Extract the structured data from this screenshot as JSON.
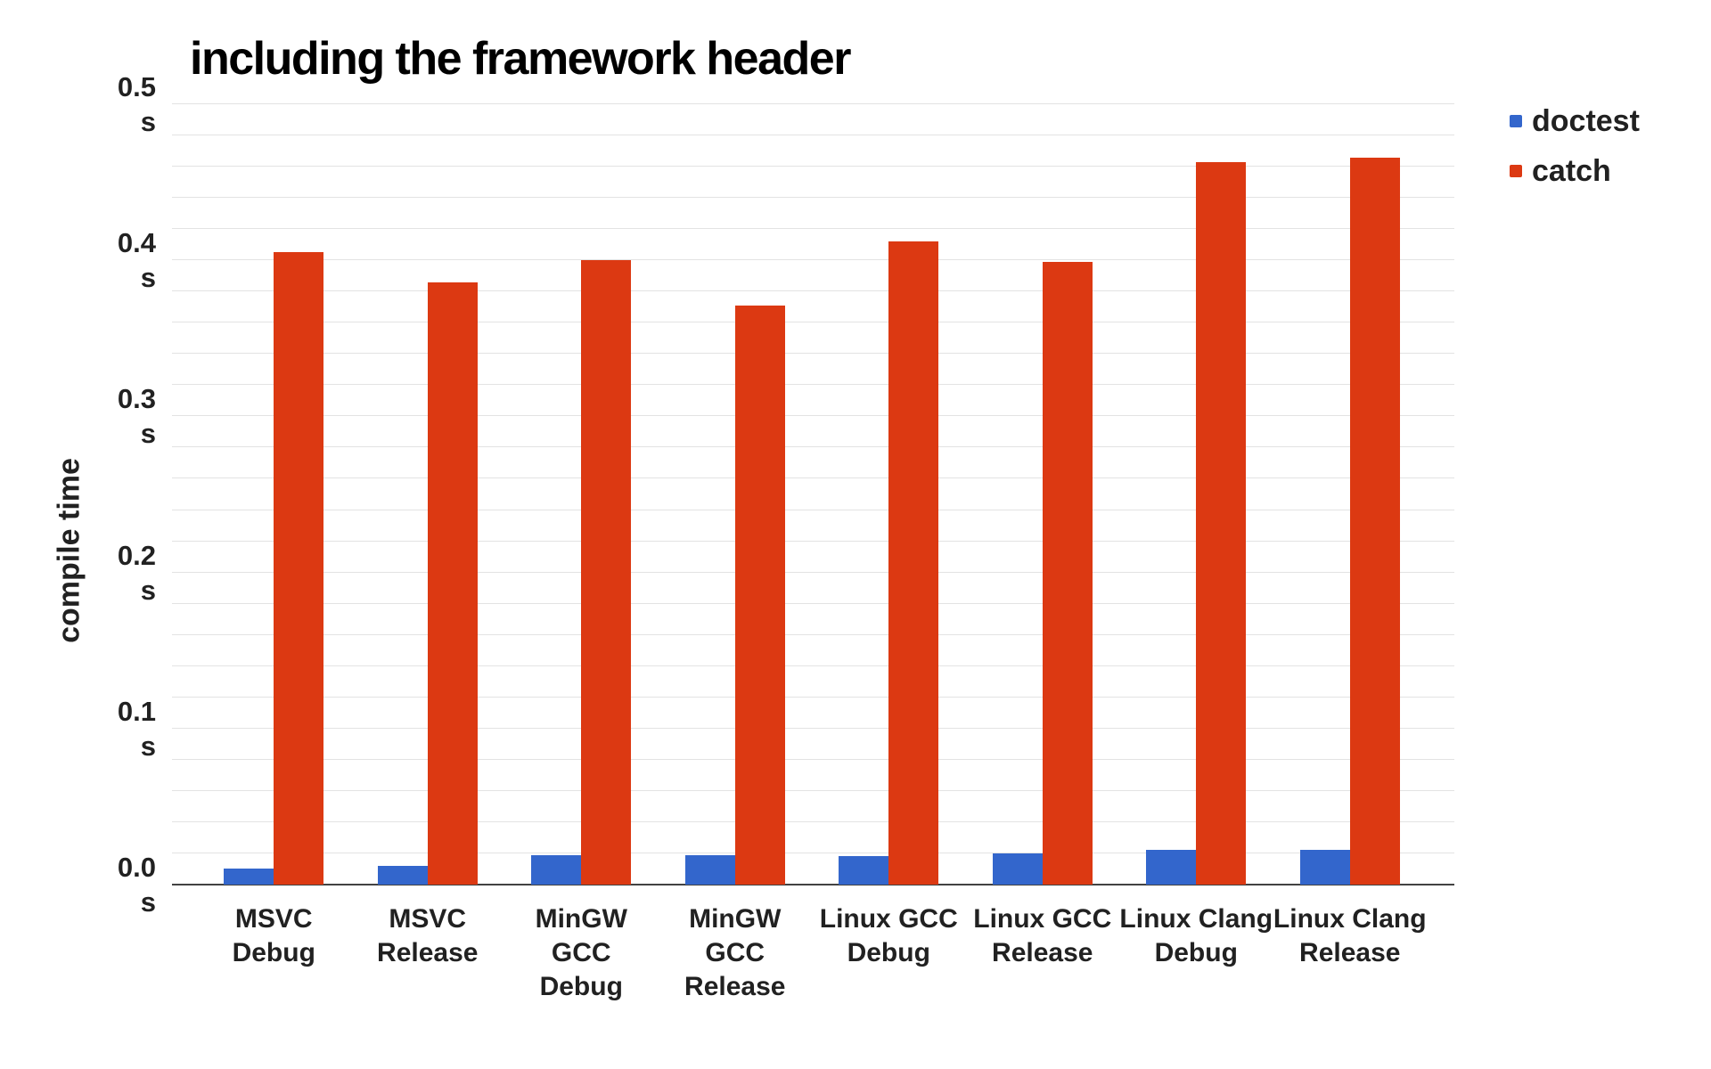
{
  "chart_data": {
    "type": "bar",
    "title": "including the framework header",
    "ylabel": "compile time",
    "xlabel": "",
    "tick_unit": "s",
    "ylim": [
      0,
      0.5
    ],
    "yticks": [
      0.0,
      0.1,
      0.2,
      0.3,
      0.4,
      0.5
    ],
    "minor_grid_step": 0.02,
    "grid": true,
    "legend_position": "top-right",
    "categories": [
      [
        "MSVC",
        "Debug"
      ],
      [
        "MSVC",
        "Release"
      ],
      [
        "MinGW GCC",
        "Debug"
      ],
      [
        "MinGW GCC",
        "Release"
      ],
      [
        "Linux GCC",
        "Debug"
      ],
      [
        "Linux GCC",
        "Release"
      ],
      [
        "Linux Clang",
        "Debug"
      ],
      [
        "Linux Clang",
        "Release"
      ]
    ],
    "series": [
      {
        "name": "doctest",
        "color": "#3366cc",
        "values": [
          0.01,
          0.012,
          0.019,
          0.019,
          0.018,
          0.02,
          0.022,
          0.022
        ]
      },
      {
        "name": "catch",
        "color": "#dc3912",
        "values": [
          0.405,
          0.386,
          0.4,
          0.371,
          0.412,
          0.399,
          0.463,
          0.466
        ]
      }
    ],
    "colors": {
      "grid": "#e3e3e3",
      "axis_baseline": "#424242",
      "title_text": "#000000",
      "label_text": "#212121"
    }
  }
}
